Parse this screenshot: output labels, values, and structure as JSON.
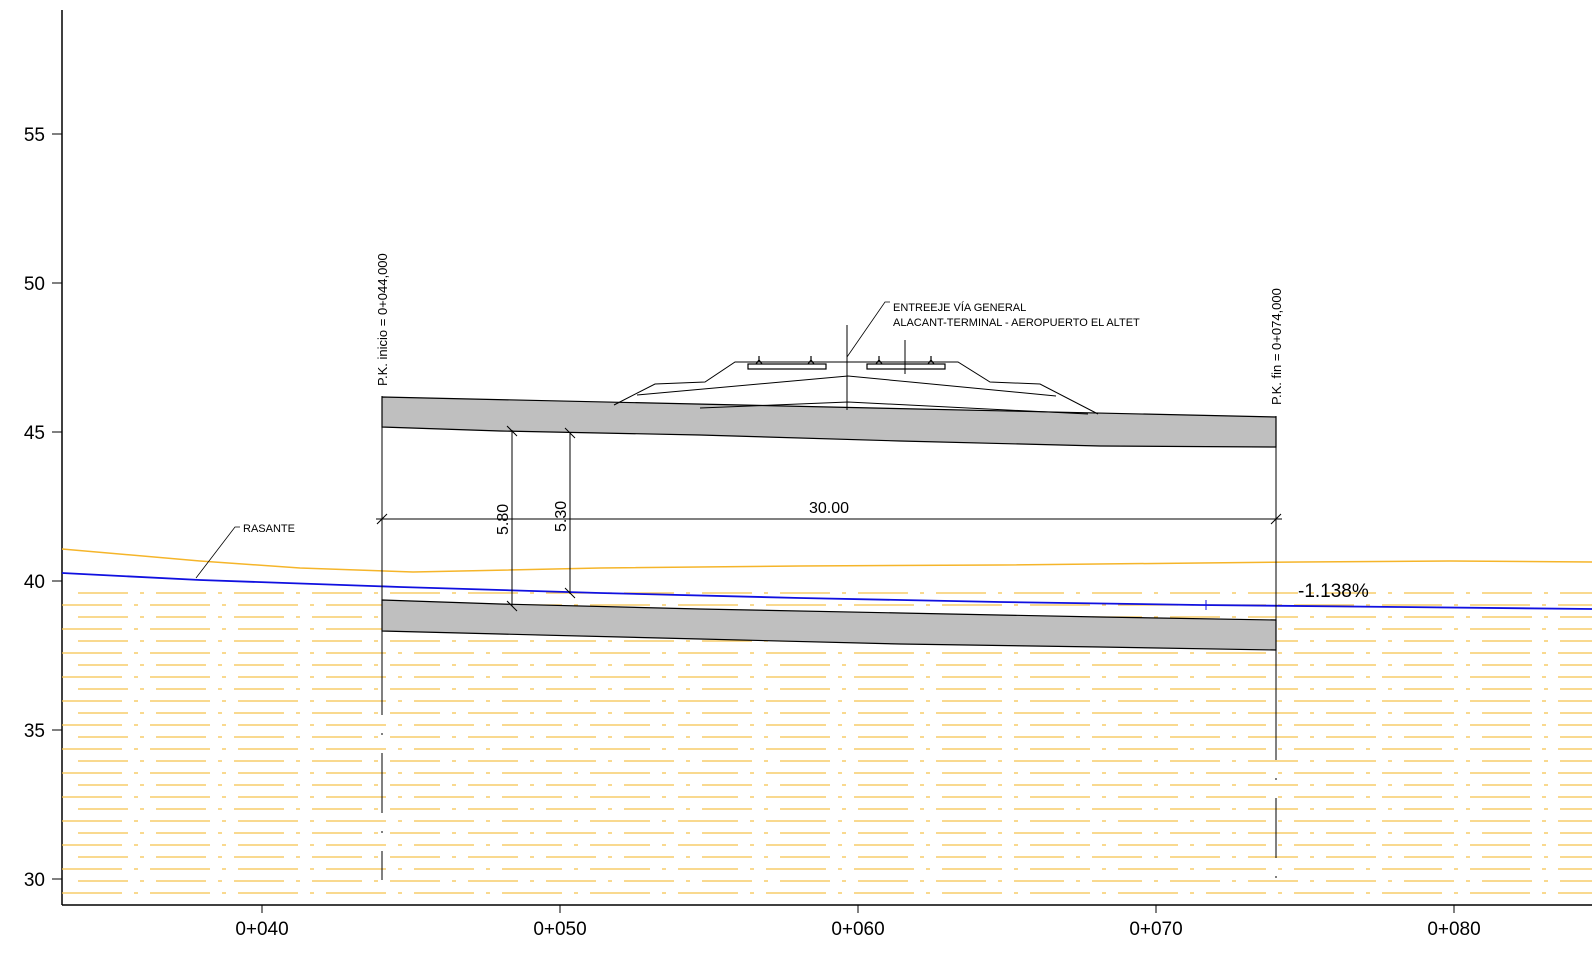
{
  "axis": {
    "y_ticks": [
      {
        "label": "55",
        "value": 55
      },
      {
        "label": "50",
        "value": 50
      },
      {
        "label": "45",
        "value": 45
      },
      {
        "label": "40",
        "value": 40
      },
      {
        "label": "35",
        "value": 35
      },
      {
        "label": "30",
        "value": 30
      }
    ],
    "x_ticks": [
      {
        "label": "0+040",
        "value": 40
      },
      {
        "label": "0+050",
        "value": 50
      },
      {
        "label": "0+060",
        "value": 60
      },
      {
        "label": "0+070",
        "value": 70
      },
      {
        "label": "0+080",
        "value": 80
      }
    ]
  },
  "labels": {
    "pk_start": "P.K. inicio = 0+044,000",
    "pk_end": "P.K. fin = 0+074,000",
    "callout_line1": "ENTREEJE VÍA GENERAL",
    "callout_line2": "ALACANT-TERMINAL - AEROPUERTO EL ALTET",
    "rasante": "RASANTE",
    "dim_width": "30.00",
    "dim_h1": "5.80",
    "dim_h2": "5.30",
    "slope": "-1.138%"
  },
  "colors": {
    "rasante_line": "#1010e0",
    "terrain_line": "#f5b52a",
    "water_hatch": "#f5c24c",
    "slab_fill": "#bfbfbf"
  }
}
